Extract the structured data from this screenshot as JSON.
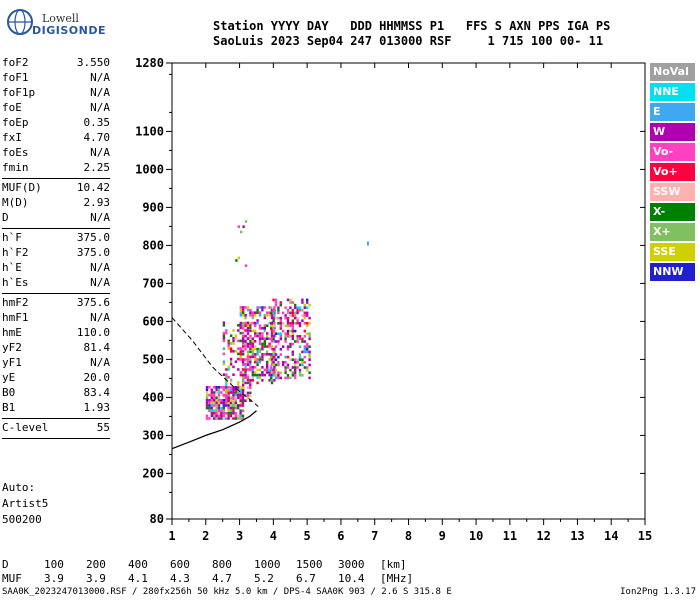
{
  "logo": {
    "line1": "Lowell",
    "line2": "DIGISONDE"
  },
  "header": {
    "line1": "Station YYYY DAY   DDD HHMMSS P1   FFS S AXN PPS IGA PS",
    "line2": "SaoLuis 2023 Sep04 247 013000 RSF     1 715 100 00- 11"
  },
  "params": [
    {
      "k": "foF2",
      "v": "3.550"
    },
    {
      "k": "foF1",
      "v": "N/A"
    },
    {
      "k": "foF1p",
      "v": "N/A"
    },
    {
      "k": "foE",
      "v": "N/A"
    },
    {
      "k": "foEp",
      "v": "0.35"
    },
    {
      "k": "fxI",
      "v": "4.70"
    },
    {
      "k": "foEs",
      "v": "N/A"
    },
    {
      "k": "fmin",
      "v": "2.25"
    },
    {
      "k": "MUF(D)",
      "v": "10.42"
    },
    {
      "k": "M(D)",
      "v": "2.93"
    },
    {
      "k": "D",
      "v": "N/A"
    },
    {
      "k": "h`F",
      "v": "375.0"
    },
    {
      "k": "h`F2",
      "v": "375.0"
    },
    {
      "k": "h`E",
      "v": "N/A"
    },
    {
      "k": "h`Es",
      "v": "N/A"
    },
    {
      "k": "hmF2",
      "v": "375.6"
    },
    {
      "k": "hmF1",
      "v": "N/A"
    },
    {
      "k": "hmE",
      "v": "110.0"
    },
    {
      "k": "yF2",
      "v": "81.4"
    },
    {
      "k": "yF1",
      "v": "N/A"
    },
    {
      "k": "yE",
      "v": "20.0"
    },
    {
      "k": "B0",
      "v": "83.4"
    },
    {
      "k": "B1",
      "v": "1.93"
    },
    {
      "k": "C-level",
      "v": "55"
    }
  ],
  "auto": {
    "line1": "Auto:",
    "line2": "Artist5",
    "line3": "500200"
  },
  "legend": [
    {
      "label": "NoVal",
      "color": "#a0a0a0"
    },
    {
      "label": "NNE",
      "color": "#00e0f0"
    },
    {
      "label": "E",
      "color": "#40a8f0"
    },
    {
      "label": "W",
      "color": "#b000b0"
    },
    {
      "label": "Vo-",
      "color": "#ff40c0"
    },
    {
      "label": "Vo+",
      "color": "#ff0040"
    },
    {
      "label": "SSW",
      "color": "#ffb0b0"
    },
    {
      "label": "X-",
      "color": "#008000"
    },
    {
      "label": "X+",
      "color": "#80c060"
    },
    {
      "label": "SSE",
      "color": "#d0d000"
    },
    {
      "label": "NNW",
      "color": "#2020d0"
    }
  ],
  "muf_table": {
    "d_label": "D",
    "d_values": [
      "100",
      "200",
      "400",
      "600",
      "800",
      "1000",
      "1500",
      "3000"
    ],
    "d_unit": "[km]",
    "muf_label": "MUF",
    "muf_values": [
      "3.9",
      "3.9",
      "4.1",
      "4.3",
      "4.7",
      "5.2",
      "6.7",
      "10.4"
    ],
    "muf_unit": "[MHz]"
  },
  "footer": "SAA0K_2023247013000.RSF / 280fx256h 50 kHz 5.0 km / DPS-4 SAA0K 903 / 2.6 S 315.8 E",
  "version": "Ion2Png 1.3.17",
  "chart_data": {
    "type": "scatter",
    "xlim": [
      1,
      15
    ],
    "ylim": [
      80,
      1280
    ],
    "x_ticks": [
      1,
      2,
      3,
      4,
      5,
      6,
      7,
      8,
      9,
      10,
      11,
      12,
      13,
      14,
      15
    ],
    "y_ticks": [
      80,
      200,
      300,
      400,
      500,
      600,
      700,
      800,
      900,
      1000,
      1100,
      1280
    ],
    "grid": false,
    "legend_position": "right",
    "trace": {
      "label": "foF2 virtual height trace",
      "x": [
        1.0,
        1.5,
        2.0,
        2.5,
        3.0,
        3.3,
        3.5
      ],
      "y": [
        265,
        282,
        300,
        315,
        335,
        350,
        365
      ]
    },
    "profile": {
      "label": "electron density profile",
      "x": [
        1.0,
        1.6,
        2.2,
        2.8,
        3.3,
        3.55
      ],
      "y": [
        610,
        550,
        480,
        430,
        395,
        376
      ]
    },
    "echo_regions": [
      {
        "xmin": 2.0,
        "xmax": 3.1,
        "ymin": 345,
        "ymax": 430,
        "density": 0.8
      },
      {
        "xmin": 2.5,
        "xmax": 3.3,
        "ymin": 390,
        "ymax": 600,
        "density": 0.35
      },
      {
        "xmin": 3.0,
        "xmax": 4.0,
        "ymin": 440,
        "ymax": 640,
        "density": 0.55
      },
      {
        "xmin": 3.9,
        "xmax": 5.1,
        "ymin": 450,
        "ymax": 660,
        "density": 0.45
      },
      {
        "xmin": 2.8,
        "xmax": 3.2,
        "ymin": 650,
        "ymax": 880,
        "density": 0.08
      }
    ],
    "isolated_points": [
      {
        "x": 6.8,
        "y": 805,
        "color": "#40a8f0"
      }
    ]
  }
}
